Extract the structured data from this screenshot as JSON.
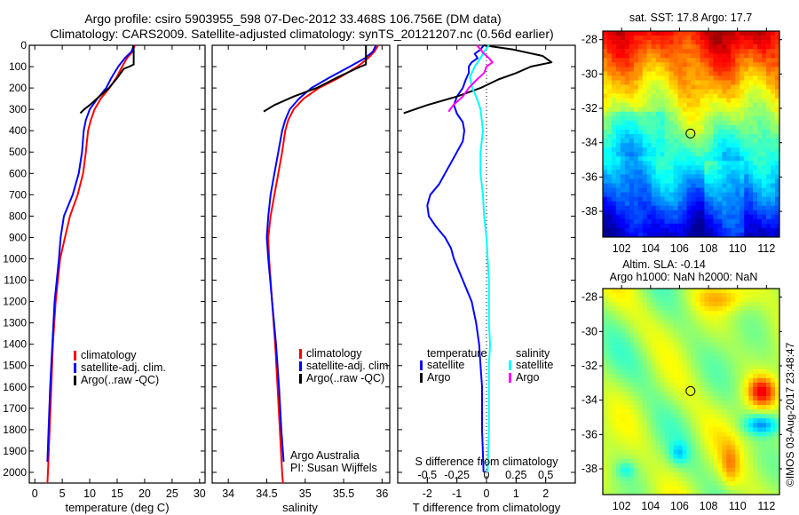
{
  "title": {
    "line1": "Argo profile: csiro 5903955_598 07-Dec-2012 33.468S 106.756E (DM data)",
    "line2": "Climatology: CARS2009. Satellite-adjusted climatology: synTS_20121207.nc (0.56d earlier)"
  },
  "colors": {
    "climatology": "#ff0000",
    "satellite": "#0000ff",
    "argo": "#000000",
    "sal_satellite": "#00ffff",
    "sal_argo": "#ff00ff"
  },
  "chart_data": [
    {
      "id": "temperature",
      "type": "line",
      "xlabel": "temperature (deg C)",
      "ylabel": "",
      "xlim": [
        -1,
        31
      ],
      "ylim": [
        2050,
        0
      ],
      "xticks": [
        0,
        5,
        10,
        15,
        20,
        25,
        30
      ],
      "yticks": [
        0,
        100,
        200,
        300,
        400,
        500,
        600,
        700,
        800,
        900,
        1000,
        1100,
        1200,
        1300,
        1400,
        1500,
        1600,
        1700,
        1800,
        1900,
        2000
      ],
      "legend": [
        "climatology",
        "satellite-adj. clim.",
        "Argo(..raw -QC)"
      ],
      "series": [
        {
          "name": "climatology",
          "color_key": "climatology",
          "depth": [
            0,
            30,
            60,
            100,
            150,
            200,
            250,
            300,
            350,
            400,
            500,
            600,
            700,
            800,
            900,
            1000,
            1200,
            1400,
            1600,
            1800,
            2000,
            2050
          ],
          "values": [
            18.2,
            17.8,
            16.8,
            15.9,
            14.9,
            13.6,
            12.0,
            10.9,
            10.2,
            9.7,
            9.3,
            8.8,
            7.8,
            6.4,
            5.5,
            4.6,
            3.8,
            3.3,
            3.0,
            2.7,
            2.4,
            2.3
          ]
        },
        {
          "name": "satellite-adj. clim.",
          "color_key": "satellite",
          "depth": [
            0,
            30,
            60,
            100,
            150,
            200,
            250,
            300,
            350,
            400,
            500,
            600,
            700,
            800,
            900,
            1000,
            1200,
            1400,
            1600,
            1800,
            1950
          ],
          "values": [
            18.0,
            17.6,
            16.4,
            15.2,
            14.0,
            13.0,
            11.4,
            10.0,
            9.3,
            8.9,
            8.6,
            8.0,
            6.9,
            5.3,
            4.7,
            4.4,
            3.6,
            3.2,
            2.8,
            2.5,
            2.3
          ]
        },
        {
          "name": "Argo(..raw -QC)",
          "color_key": "argo",
          "depth": [
            0,
            20,
            50,
            90,
            100,
            110,
            150,
            200,
            250,
            280,
            300,
            318
          ],
          "values": [
            17.9,
            18.0,
            18.0,
            18.0,
            17.2,
            16.2,
            15.1,
            13.5,
            11.3,
            10.0,
            9.0,
            8.3
          ]
        }
      ]
    },
    {
      "id": "salinity",
      "type": "line",
      "xlabel": "salinity",
      "ylabel": "",
      "xlim": [
        33.79,
        36.1
      ],
      "ylim": [
        2050,
        0
      ],
      "xticks": [
        34,
        34.5,
        35,
        35.5,
        36
      ],
      "legend": [
        "climatology",
        "satellite-adj. clim.",
        "Argo(..raw -QC)"
      ],
      "annotation": [
        "Argo Australia",
        "PI: Susan Wijffels"
      ],
      "series": [
        {
          "name": "climatology",
          "color_key": "climatology",
          "depth": [
            0,
            30,
            60,
            100,
            150,
            200,
            250,
            300,
            350,
            400,
            500,
            600,
            700,
            800,
            900,
            1000,
            1200,
            1400,
            1600,
            1800,
            2000,
            2050
          ],
          "values": [
            35.95,
            35.9,
            35.82,
            35.68,
            35.45,
            35.18,
            34.98,
            34.85,
            34.78,
            34.74,
            34.7,
            34.65,
            34.6,
            34.55,
            34.52,
            34.53,
            34.57,
            34.61,
            34.64,
            34.67,
            34.7,
            34.71
          ]
        },
        {
          "name": "satellite-adj. clim.",
          "color_key": "satellite",
          "depth": [
            0,
            30,
            60,
            100,
            150,
            200,
            250,
            300,
            350,
            400,
            500,
            600,
            700,
            800,
            900,
            1000,
            1200,
            1400,
            1600,
            1800,
            1950
          ],
          "values": [
            35.92,
            35.88,
            35.78,
            35.58,
            35.32,
            35.08,
            34.92,
            34.8,
            34.74,
            34.7,
            34.65,
            34.6,
            34.55,
            34.52,
            34.5,
            34.52,
            34.57,
            34.62,
            34.66,
            34.69,
            34.72
          ]
        },
        {
          "name": "Argo(..raw -QC)",
          "color_key": "argo",
          "depth": [
            0,
            30,
            60,
            90,
            100,
            150,
            200,
            240,
            280,
            310
          ],
          "values": [
            35.79,
            35.79,
            35.79,
            35.79,
            35.72,
            35.42,
            35.15,
            34.85,
            34.6,
            34.46
          ]
        }
      ]
    },
    {
      "id": "difference",
      "type": "line",
      "xlabel": "T difference from climatology",
      "x2label": "S difference from climatology",
      "xlim": [
        -3,
        3
      ],
      "x2lim": [
        -0.75,
        0.75
      ],
      "ylim": [
        2050,
        0
      ],
      "xticks": [
        -2,
        -1,
        0,
        1,
        2
      ],
      "x2ticks": [
        -0.5,
        -0.25,
        0,
        0.25,
        0.5
      ],
      "zero_line": "dotted",
      "legend": {
        "temperature": [
          "satellite",
          "Argo"
        ],
        "salinity": [
          "satellite",
          "Argo"
        ]
      },
      "series": [
        {
          "name": "temperature satellite",
          "axis": "T",
          "color_key": "satellite",
          "depth": [
            0,
            20,
            40,
            60,
            80,
            100,
            130,
            160,
            200,
            240,
            280,
            320,
            360,
            400,
            450,
            500,
            550,
            600,
            650,
            700,
            750,
            800,
            850,
            900,
            950,
            1000,
            1100,
            1200,
            1300,
            1400,
            1500,
            1600,
            1800,
            2000
          ],
          "values": [
            -0.1,
            -0.2,
            -0.4,
            -0.3,
            -0.5,
            -0.6,
            -0.6,
            -0.7,
            -0.8,
            -1.0,
            -1.1,
            -1.0,
            -0.8,
            -0.75,
            -0.8,
            -1.0,
            -1.2,
            -1.4,
            -1.6,
            -1.9,
            -2.0,
            -1.95,
            -1.7,
            -1.4,
            -1.2,
            -1.1,
            -0.8,
            -0.5,
            -0.35,
            -0.25,
            -0.2,
            -0.15,
            -0.15,
            -0.1
          ]
        },
        {
          "name": "temperature Argo",
          "axis": "T",
          "color_key": "argo",
          "depth": [
            0,
            20,
            50,
            80,
            100,
            130,
            160,
            200,
            240,
            280,
            318
          ],
          "values": [
            -0.1,
            0.9,
            1.9,
            2.2,
            1.5,
            1.0,
            0.4,
            -0.2,
            -1.0,
            -2.0,
            -2.8
          ]
        },
        {
          "name": "salinity satellite",
          "axis": "S",
          "color_key": "sal_satellite",
          "depth": [
            0,
            30,
            60,
            100,
            150,
            200,
            250,
            300,
            400,
            500,
            600,
            700,
            800,
            900,
            1000,
            1100,
            1200,
            1300,
            1400,
            1500,
            1600,
            1800,
            2000
          ],
          "values": [
            0.02,
            -0.02,
            -0.05,
            -0.1,
            -0.14,
            -0.12,
            -0.08,
            -0.05,
            -0.03,
            -0.05,
            -0.05,
            -0.03,
            -0.02,
            0.0,
            0.01,
            0.02,
            0.02,
            0.02,
            0.03,
            0.02,
            0.02,
            0.02,
            0.01
          ]
        },
        {
          "name": "salinity Argo",
          "axis": "S",
          "color_key": "sal_argo",
          "depth": [
            0,
            20,
            40,
            60,
            80,
            100,
            130,
            160,
            200,
            240,
            280,
            310
          ],
          "values": [
            -0.08,
            -0.05,
            -0.02,
            0.02,
            0.05,
            0.0,
            -0.02,
            -0.08,
            -0.15,
            -0.2,
            -0.28,
            -0.32
          ]
        }
      ]
    },
    {
      "id": "sst-map",
      "type": "heatmap",
      "title": "sat. SST: 17.8 Argo: 17.7",
      "xticks": [
        102,
        104,
        106,
        108,
        110,
        112
      ],
      "yticks": [
        -28,
        -30,
        -32,
        -34,
        -36,
        -38
      ],
      "xlim": [
        100.7,
        112.9
      ],
      "ylim": [
        -39.5,
        -27.5
      ],
      "marker": {
        "lon": 106.756,
        "lat": -33.468
      }
    },
    {
      "id": "sla-map",
      "type": "heatmap",
      "title": "Altim. SLA: -0.14",
      "subtitle": "Argo h1000: NaN h2000: NaN",
      "xticks": [
        102,
        104,
        106,
        108,
        110,
        112
      ],
      "yticks": [
        -28,
        -30,
        -32,
        -34,
        -36,
        -38
      ],
      "xlim": [
        100.7,
        112.9
      ],
      "ylim": [
        -39.5,
        -27.5
      ],
      "marker": {
        "lon": 106.756,
        "lat": -33.468
      }
    }
  ],
  "footer": {
    "credit": "©IMOS 03-Aug-2017 23:48:47"
  }
}
